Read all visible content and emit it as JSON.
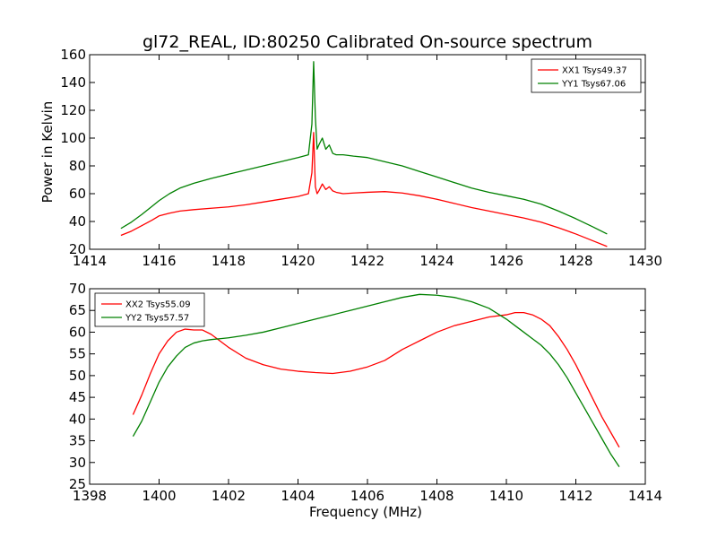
{
  "figure": {
    "title": "gl72_REAL, ID:80250 Calibrated On-source spectrum"
  },
  "chart_data": [
    {
      "type": "line",
      "title": "gl72_REAL, ID:80250 Calibrated On-source spectrum",
      "xlabel": "",
      "ylabel": "Power in Kelvin",
      "xlim": [
        1414,
        1430
      ],
      "ylim": [
        20,
        160
      ],
      "x_ticks": [
        "1414",
        "1416",
        "1418",
        "1420",
        "1422",
        "1424",
        "1426",
        "1428",
        "1430"
      ],
      "y_ticks": [
        "20",
        "40",
        "60",
        "80",
        "100",
        "120",
        "140",
        "160"
      ],
      "legend_position": "top-right",
      "grid": false,
      "series": [
        {
          "name": "XX1 Tsys49.37",
          "color": "#ff0000",
          "x": [
            1414.9,
            1415.2,
            1415.5,
            1415.8,
            1416.0,
            1416.3,
            1416.6,
            1417.0,
            1417.5,
            1418.0,
            1418.5,
            1419.0,
            1419.5,
            1420.0,
            1420.3,
            1420.4,
            1420.45,
            1420.5,
            1420.55,
            1420.6,
            1420.7,
            1420.8,
            1420.9,
            1421.0,
            1421.1,
            1421.3,
            1421.6,
            1422.0,
            1422.5,
            1423.0,
            1423.5,
            1424.0,
            1424.5,
            1425.0,
            1425.5,
            1426.0,
            1426.5,
            1427.0,
            1427.5,
            1428.0,
            1428.5,
            1428.9
          ],
          "values": [
            30,
            33,
            37,
            41,
            44,
            46,
            47.5,
            48.5,
            49.5,
            50.5,
            52,
            54,
            56,
            58,
            60,
            75,
            104,
            65,
            60,
            62,
            67,
            63,
            65,
            62,
            61,
            60,
            60.5,
            61,
            61.5,
            60.5,
            58.5,
            56,
            53,
            50,
            47.5,
            45,
            42.5,
            39.5,
            35.5,
            31,
            26,
            22
          ]
        },
        {
          "name": "YY1 Tsys67.06",
          "color": "#008000",
          "x": [
            1414.9,
            1415.2,
            1415.5,
            1415.8,
            1416.0,
            1416.3,
            1416.6,
            1417.0,
            1417.5,
            1418.0,
            1418.5,
            1419.0,
            1419.5,
            1420.0,
            1420.3,
            1420.4,
            1420.45,
            1420.5,
            1420.55,
            1420.6,
            1420.7,
            1420.8,
            1420.9,
            1421.0,
            1421.1,
            1421.3,
            1421.6,
            1422.0,
            1422.5,
            1423.0,
            1423.5,
            1424.0,
            1424.5,
            1425.0,
            1425.5,
            1426.0,
            1426.5,
            1427.0,
            1427.5,
            1428.0,
            1428.5,
            1428.9
          ],
          "values": [
            35,
            39.5,
            45,
            51,
            55,
            60,
            64,
            67.5,
            71,
            74,
            77,
            80,
            83,
            86,
            88,
            110,
            155,
            115,
            92,
            95,
            100,
            92,
            95,
            89,
            88,
            88,
            87,
            86,
            83,
            80,
            76,
            72,
            68,
            64,
            61,
            58.5,
            56,
            52.5,
            47.5,
            42,
            36,
            31
          ]
        }
      ]
    },
    {
      "type": "line",
      "title": "",
      "xlabel": "Frequency (MHz)",
      "ylabel": "",
      "xlim": [
        1398,
        1414
      ],
      "ylim": [
        25,
        70
      ],
      "x_ticks": [
        "1398",
        "1400",
        "1402",
        "1404",
        "1406",
        "1408",
        "1410",
        "1412",
        "1414"
      ],
      "y_ticks": [
        "25",
        "30",
        "35",
        "40",
        "45",
        "50",
        "55",
        "60",
        "65",
        "70"
      ],
      "legend_position": "top-left",
      "grid": false,
      "series": [
        {
          "name": "XX2 Tsys55.09",
          "color": "#ff0000",
          "x": [
            1399.25,
            1399.5,
            1399.75,
            1400.0,
            1400.25,
            1400.5,
            1400.75,
            1401.0,
            1401.25,
            1401.5,
            1401.75,
            1402.0,
            1402.5,
            1403.0,
            1403.5,
            1404.0,
            1404.5,
            1405.0,
            1405.5,
            1406.0,
            1406.5,
            1407.0,
            1407.5,
            1408.0,
            1408.5,
            1409.0,
            1409.5,
            1410.0,
            1410.25,
            1410.5,
            1410.75,
            1411.0,
            1411.25,
            1411.5,
            1411.75,
            1412.0,
            1412.25,
            1412.5,
            1412.75,
            1413.0,
            1413.25
          ],
          "values": [
            41,
            45.5,
            50.5,
            55,
            58,
            60,
            60.7,
            60.5,
            60.5,
            59.5,
            58,
            56.5,
            54,
            52.5,
            51.5,
            51,
            50.7,
            50.5,
            51,
            52,
            53.5,
            56,
            58,
            60,
            61.5,
            62.5,
            63.5,
            64,
            64.5,
            64.5,
            64,
            63,
            61.5,
            59,
            56,
            52.5,
            48.5,
            44.5,
            40.5,
            37,
            33.5
          ]
        },
        {
          "name": "YY2 Tsys57.57",
          "color": "#008000",
          "x": [
            1399.25,
            1399.5,
            1399.75,
            1400.0,
            1400.25,
            1400.5,
            1400.75,
            1401.0,
            1401.25,
            1401.5,
            1401.75,
            1402.0,
            1402.5,
            1403.0,
            1403.5,
            1404.0,
            1404.5,
            1405.0,
            1405.5,
            1406.0,
            1406.5,
            1407.0,
            1407.5,
            1408.0,
            1408.5,
            1409.0,
            1409.5,
            1410.0,
            1410.25,
            1410.5,
            1410.75,
            1411.0,
            1411.25,
            1411.5,
            1411.75,
            1412.0,
            1412.25,
            1412.5,
            1412.75,
            1413.0,
            1413.25
          ],
          "values": [
            36,
            39.5,
            44,
            48.5,
            52,
            54.5,
            56.5,
            57.5,
            58,
            58.3,
            58.5,
            58.7,
            59.3,
            60,
            61,
            62,
            63,
            64,
            65,
            66,
            67,
            68,
            68.7,
            68.5,
            68,
            67,
            65.5,
            63,
            61.5,
            60,
            58.5,
            57,
            55,
            52.5,
            49.5,
            46,
            42.5,
            39,
            35.5,
            32,
            29
          ]
        }
      ]
    }
  ]
}
